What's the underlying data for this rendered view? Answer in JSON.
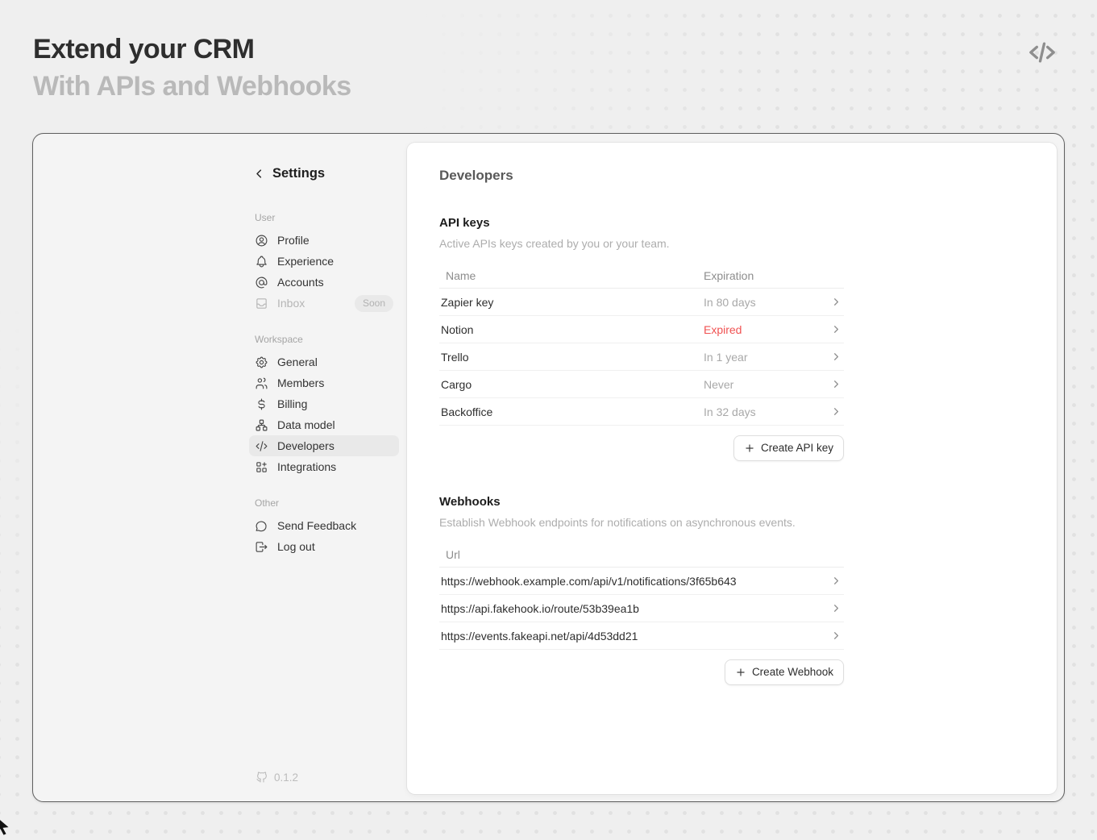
{
  "page": {
    "title": "Extend your CRM",
    "subtitle": "With APIs and Webhooks"
  },
  "sidebar": {
    "back_label": "Settings",
    "sections": [
      {
        "label": "User",
        "items": [
          {
            "label": "Profile",
            "icon": "user-circle-icon"
          },
          {
            "label": "Experience",
            "icon": "bell-icon"
          },
          {
            "label": "Accounts",
            "icon": "at-sign-icon"
          },
          {
            "label": "Inbox",
            "icon": "inbox-icon",
            "badge": "Soon",
            "disabled": true
          }
        ]
      },
      {
        "label": "Workspace",
        "items": [
          {
            "label": "General",
            "icon": "gear-icon"
          },
          {
            "label": "Members",
            "icon": "users-icon"
          },
          {
            "label": "Billing",
            "icon": "dollar-icon"
          },
          {
            "label": "Data model",
            "icon": "data-model-icon"
          },
          {
            "label": "Developers",
            "icon": "code-icon",
            "selected": true
          },
          {
            "label": "Integrations",
            "icon": "integrations-icon"
          }
        ]
      },
      {
        "label": "Other",
        "items": [
          {
            "label": "Send Feedback",
            "icon": "feedback-icon"
          },
          {
            "label": "Log out",
            "icon": "logout-icon"
          }
        ]
      }
    ],
    "version": "0.1.2"
  },
  "main": {
    "title": "Developers",
    "api_keys": {
      "heading": "API keys",
      "description": "Active APIs keys created by you or your team.",
      "columns": [
        "Name",
        "Expiration"
      ],
      "rows": [
        {
          "name": "Zapier key",
          "expiration": "In 80 days",
          "status": "normal"
        },
        {
          "name": "Notion",
          "expiration": "Expired",
          "status": "expired"
        },
        {
          "name": "Trello",
          "expiration": "In 1 year",
          "status": "normal"
        },
        {
          "name": "Cargo",
          "expiration": "Never",
          "status": "normal"
        },
        {
          "name": "Backoffice",
          "expiration": "In 32 days",
          "status": "normal"
        }
      ],
      "create_button": "Create API key"
    },
    "webhooks": {
      "heading": "Webhooks",
      "description": "Establish Webhook endpoints for notifications on asynchronous events.",
      "columns": [
        "Url"
      ],
      "rows": [
        "https://webhook.example.com/api/v1/notifications/3f65b643",
        "https://api.fakehook.io/route/53b39ea1b",
        "https://events.fakeapi.net/api/4d53dd21"
      ],
      "create_button": "Create Webhook"
    }
  },
  "colors": {
    "expired_text": "#f05252",
    "page_background": "#efefef",
    "card_background": "#f4f4f4",
    "panel_background": "#ffffff",
    "selected_item_background": "#e9e9e9"
  }
}
